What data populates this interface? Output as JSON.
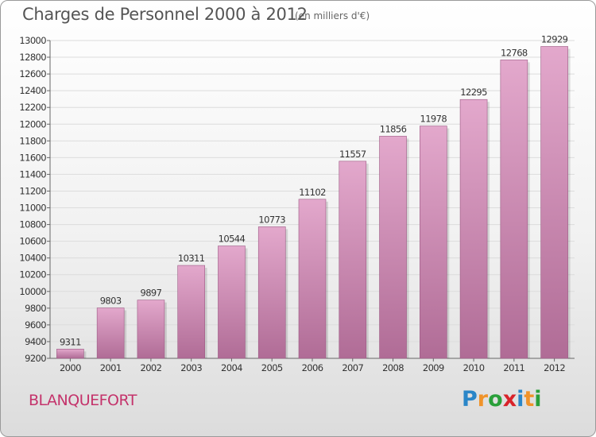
{
  "header": {
    "title": "Charges de Personnel 2000 à 2012",
    "unit": "(en milliers d'€)"
  },
  "footer": {
    "commune": "BLANQUEFORT",
    "logo": {
      "text": "Proxiti",
      "letters": [
        {
          "char": "P",
          "color": "#2a86c8"
        },
        {
          "char": "r",
          "color": "#f0932a"
        },
        {
          "char": "o",
          "color": "#2aa03a"
        },
        {
          "char": "x",
          "color": "#d8232a"
        },
        {
          "char": "i",
          "color": "#2a86c8"
        },
        {
          "char": "t",
          "color": "#f0932a"
        },
        {
          "char": "i",
          "color": "#2aa03a"
        }
      ]
    }
  },
  "colors": {
    "bar_top": "#e3a8cc",
    "bar_bottom": "#b06c96",
    "grid": "#dcdcdc",
    "axis": "#666666",
    "label": "#333333"
  },
  "chart_data": {
    "type": "bar",
    "categories": [
      "2000",
      "2001",
      "2002",
      "2003",
      "2004",
      "2005",
      "2006",
      "2007",
      "2008",
      "2009",
      "2010",
      "2011",
      "2012"
    ],
    "values": [
      9311,
      9803,
      9897,
      10311,
      10544,
      10773,
      11102,
      11557,
      11856,
      11978,
      12295,
      12768,
      12929
    ],
    "ylim": [
      9200,
      13000
    ],
    "yticks": [
      9200,
      9400,
      9600,
      9800,
      10000,
      10200,
      10400,
      10600,
      10800,
      11000,
      11200,
      11400,
      11600,
      11800,
      12000,
      12200,
      12400,
      12600,
      12800,
      13000
    ],
    "grid": true,
    "data_labels": true
  }
}
